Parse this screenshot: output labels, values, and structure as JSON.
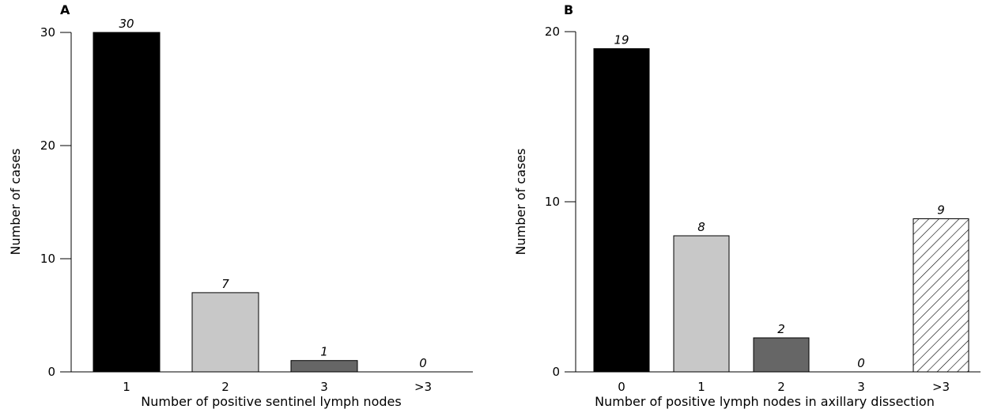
{
  "chart_data": [
    {
      "type": "bar",
      "panel": "A",
      "categories": [
        "1",
        "2",
        "3",
        ">3"
      ],
      "values": [
        30,
        7,
        1,
        0
      ],
      "data_labels": [
        "30",
        "7",
        "1",
        "0"
      ],
      "xlabel": "Number of positive sentinel lymph nodes",
      "ylabel": "Number of cases",
      "ylim": [
        0,
        30
      ],
      "yticks": [
        "0",
        "10",
        "20",
        "30"
      ],
      "bar_fills": [
        "black",
        "light-grey",
        "dark-grey",
        "none"
      ],
      "grid": false
    },
    {
      "type": "bar",
      "panel": "B",
      "categories": [
        "0",
        "1",
        "2",
        "3",
        ">3"
      ],
      "values": [
        19,
        8,
        2,
        0,
        9
      ],
      "data_labels": [
        "19",
        "8",
        "2",
        "0",
        "9"
      ],
      "xlabel": "Number of positive lymph nodes in axillary dissection",
      "ylabel": "Number of cases",
      "ylim": [
        0,
        20
      ],
      "yticks": [
        "0",
        "10",
        "20"
      ],
      "bar_fills": [
        "black",
        "light-grey",
        "dark-grey",
        "none",
        "hatched"
      ],
      "grid": false
    }
  ],
  "colors": {
    "black": "#000000",
    "light-grey": "#c8c8c8",
    "dark-grey": "#666666",
    "none": "#ffffff",
    "hatched": "#ffffff",
    "axis": "#000000"
  }
}
